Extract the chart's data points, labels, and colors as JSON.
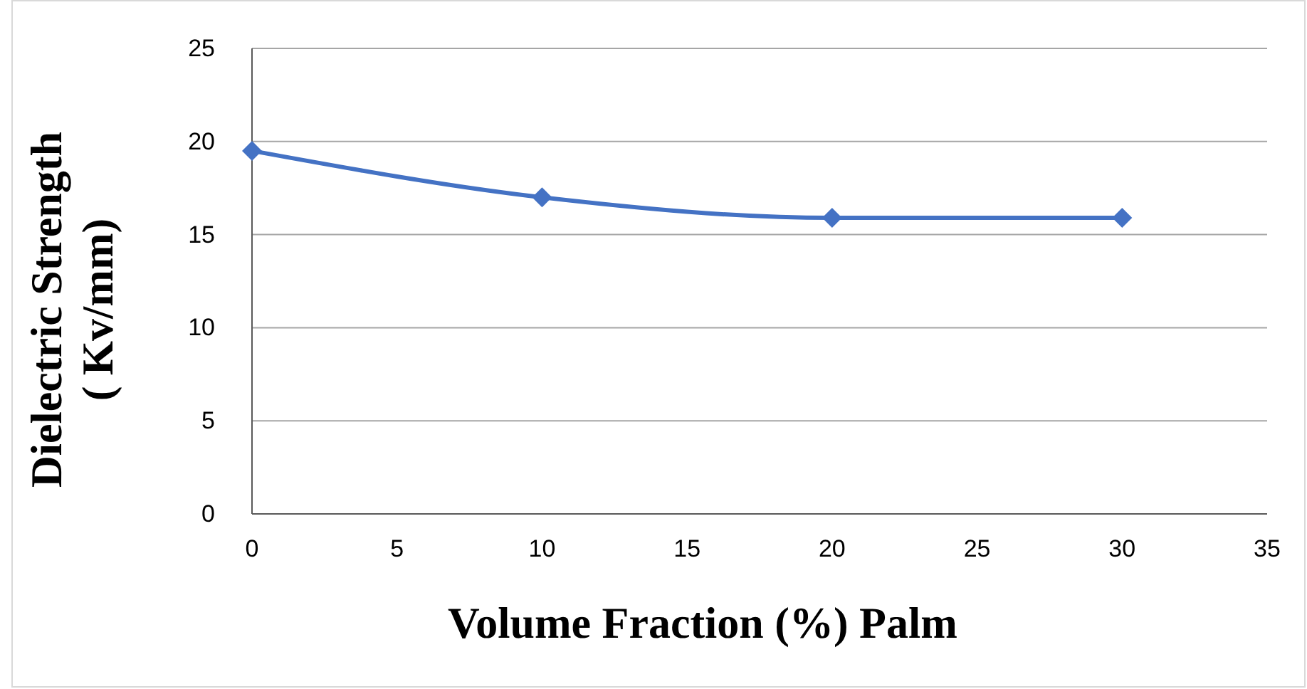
{
  "chart_data": {
    "type": "line",
    "xlabel": "Volume Fraction (%) Palm",
    "ylabel": "Dielectric Strength\n( Kv/mm)",
    "x": [
      0,
      10,
      20,
      30
    ],
    "series": [
      {
        "color": "#4472c4",
        "values": [
          19.5,
          17.0,
          15.9,
          15.9
        ]
      }
    ],
    "xlim": [
      0,
      35
    ],
    "xticks": [
      0,
      5,
      10,
      15,
      20,
      25,
      30,
      35
    ],
    "ylim": [
      0,
      25
    ],
    "yticks": [
      0,
      5,
      10,
      15,
      20,
      25
    ],
    "grid": "y",
    "marker": "diamond",
    "line_style": "solid"
  }
}
